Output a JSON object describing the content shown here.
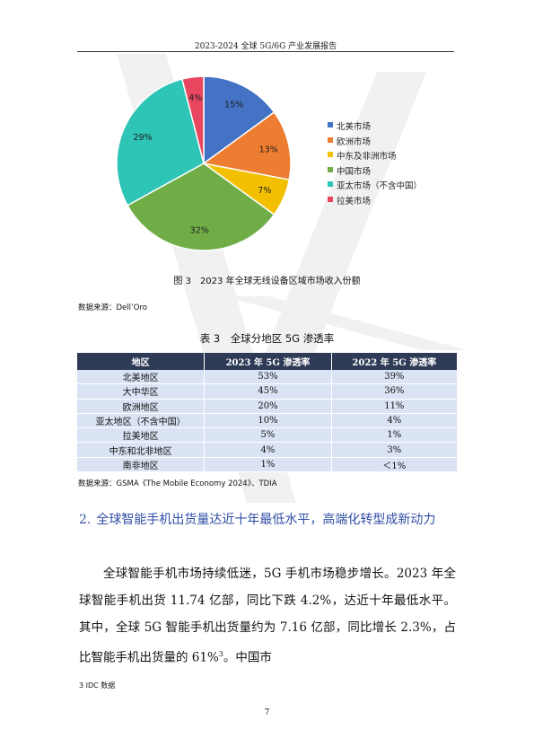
{
  "header": {
    "title": "2023-2024 全球 5G/6G 产业发展报告"
  },
  "chart_data": {
    "type": "pie",
    "categories": [
      "北美市场",
      "欧洲市场",
      "中东及非洲市场",
      "中国市场",
      "亚太市场（不含中国）",
      "拉美市场"
    ],
    "values": [
      15,
      13,
      7,
      32,
      29,
      4
    ],
    "labels": [
      "15%",
      "13%",
      "7%",
      "32%",
      "29%",
      "4%"
    ],
    "colors": [
      "#4472c4",
      "#ed7d31",
      "#f2c000",
      "#70ad47",
      "#2ec4b6",
      "#e8475f"
    ],
    "legend_position": "right",
    "title": ""
  },
  "figure": {
    "caption": "图 3　2023 年全球无线设备区域市场收入份额",
    "source": "数据来源：Dell’Oro"
  },
  "table": {
    "caption": "表 3　全球分地区 5G 渗透率",
    "headers": [
      "地区",
      "2023 年 5G 渗透率",
      "2022 年 5G 渗透率"
    ],
    "rows": [
      [
        "北美地区",
        "53%",
        "39%"
      ],
      [
        "大中华区",
        "45%",
        "36%"
      ],
      [
        "欧洲地区",
        "20%",
        "11%"
      ],
      [
        "亚太地区（不含中国）",
        "10%",
        "4%"
      ],
      [
        "拉美地区",
        "5%",
        "1%"
      ],
      [
        "中东和北非地区",
        "4%",
        "3%"
      ],
      [
        "南非地区",
        "1%",
        "＜1%"
      ]
    ],
    "source": "数据来源：GSMA《The Mobile Economy 2024》、TDIA"
  },
  "section": {
    "number": "2.",
    "heading": "全球智能手机出货量达近十年最低水平，高端化转型成新动力"
  },
  "paragraph": {
    "text": "全球智能手机市场持续低迷，5G 手机市场稳步增长。2023 年全球智能手机出货 11.74 亿部，同比下跌 4.2%，达近十年最低水平。其中，全球 5G 智能手机出货量约为 7.16 亿部，同比增长 2.3%，占比智能手机出货量的 61%",
    "footnote_ref": "3",
    "tail": "。中国市"
  },
  "footnote": {
    "text": "3  IDC 数据"
  },
  "page": {
    "number": "7"
  }
}
